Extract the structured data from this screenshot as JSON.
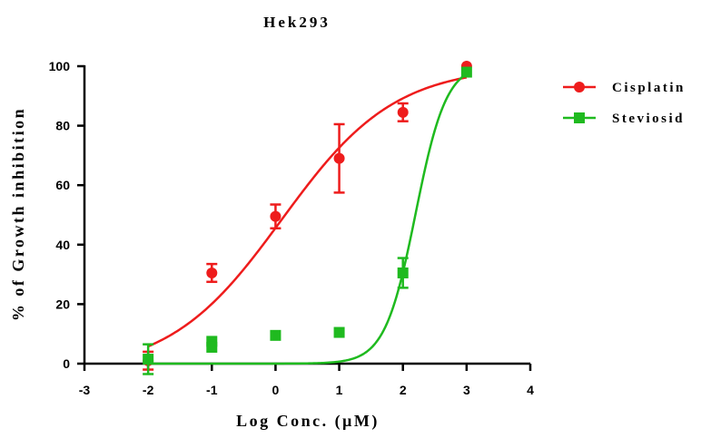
{
  "chart_data": {
    "type": "scatter",
    "title": "Hek293",
    "xlabel": "Log Conc. (µM)",
    "ylabel": "% of Growth inhibition",
    "xlim": [
      -3,
      4
    ],
    "ylim": [
      0,
      100
    ],
    "x_ticks": [
      "-3",
      "-2",
      "-1",
      "0",
      "1",
      "2",
      "3",
      "4"
    ],
    "y_ticks": [
      "0",
      "20",
      "40",
      "60",
      "80",
      "100"
    ],
    "grid": false,
    "legend_position": "right",
    "series": [
      {
        "name": "Cisplatin",
        "color": "#ee1c1c",
        "marker": "circle",
        "points": [
          {
            "x": -2,
            "y": 1,
            "err": 3
          },
          {
            "x": -1,
            "y": 30.5,
            "err": 3
          },
          {
            "x": 0,
            "y": 49.5,
            "err": 4
          },
          {
            "x": 1,
            "y": 69,
            "err": 11.5
          },
          {
            "x": 2,
            "y": 84.5,
            "err": 3
          },
          {
            "x": 3,
            "y": 100,
            "err": 0
          }
        ],
        "fit": {
          "bottom": -3,
          "top": 100,
          "log_ec50": 0.1,
          "hill": 0.49
        }
      },
      {
        "name": "Steviosid",
        "color": "#1fba1f",
        "marker": "square",
        "points": [
          {
            "x": -2,
            "y": 1.5,
            "err": 5
          },
          {
            "x": -1,
            "y": 7.5,
            "err": 0
          },
          {
            "x": -1,
            "y": 5.5,
            "err": 0
          },
          {
            "x": 0,
            "y": 9.5,
            "err": 0
          },
          {
            "x": 1,
            "y": 10.5,
            "err": 0
          },
          {
            "x": 2,
            "y": 30.5,
            "err": 5
          },
          {
            "x": 3,
            "y": 98,
            "err": 0
          }
        ],
        "fit": {
          "bottom": 0,
          "top": 101,
          "log_ec50": 2.2,
          "hill": 1.8
        }
      }
    ]
  }
}
